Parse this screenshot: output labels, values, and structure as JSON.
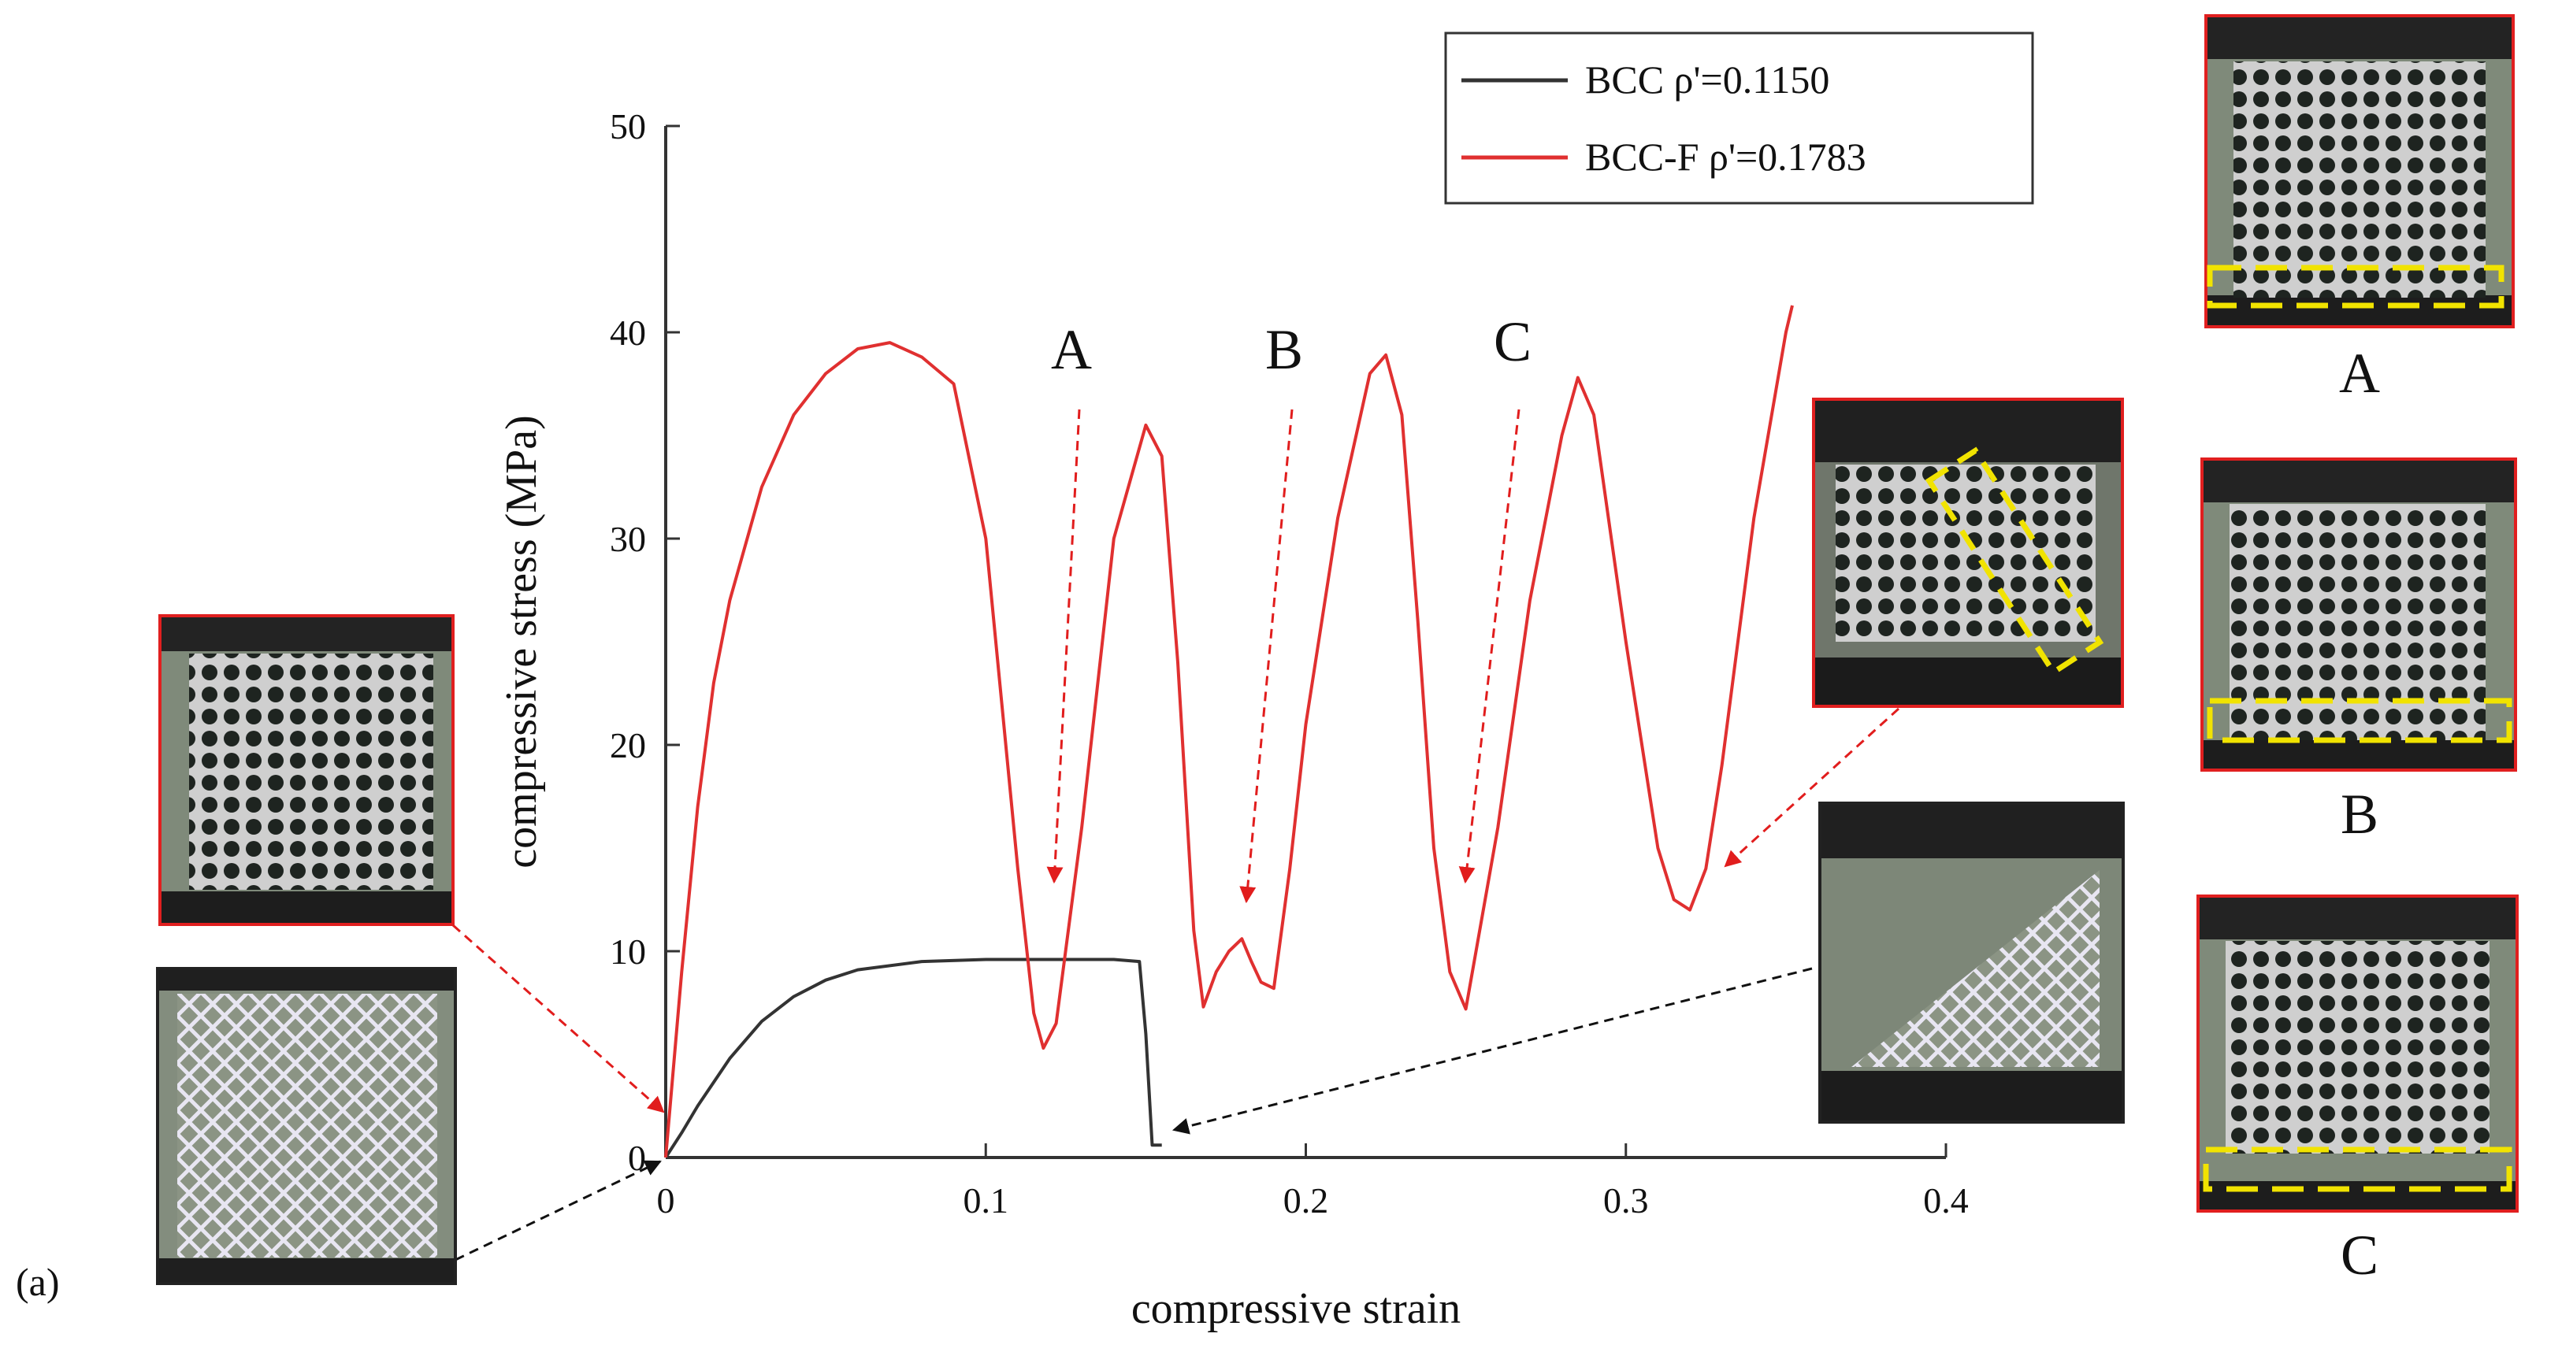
{
  "panel_label": "(a)",
  "chart_data": {
    "type": "line",
    "title": "",
    "xlabel": "compressive strain",
    "ylabel": "compressive stress (MPa)",
    "xlim": [
      0,
      0.4
    ],
    "ylim": [
      0,
      50
    ],
    "xticks": [
      0,
      0.1,
      0.2,
      0.3,
      0.4
    ],
    "xtick_labels": [
      "0",
      "0.1",
      "0.2",
      "0.3",
      "0.4"
    ],
    "yticks": [
      0,
      10,
      20,
      30,
      40,
      50
    ],
    "ytick_labels": [
      "0",
      "10",
      "20",
      "30",
      "40",
      "50"
    ],
    "grid": false,
    "legend_position": "top-right",
    "series": [
      {
        "name": "BCC ρ'=0.1150",
        "color": "#333333",
        "x": [
          0,
          0.005,
          0.01,
          0.02,
          0.03,
          0.04,
          0.05,
          0.06,
          0.08,
          0.1,
          0.12,
          0.14,
          0.148,
          0.15,
          0.152,
          0.155
        ],
        "y": [
          0,
          1.2,
          2.5,
          4.8,
          6.6,
          7.8,
          8.6,
          9.1,
          9.5,
          9.6,
          9.6,
          9.6,
          9.5,
          6.0,
          0.6,
          0.6
        ]
      },
      {
        "name": "BCC-F ρ'=0.1783",
        "color": "#e03030",
        "x": [
          0,
          0.005,
          0.01,
          0.015,
          0.02,
          0.03,
          0.04,
          0.05,
          0.06,
          0.07,
          0.08,
          0.09,
          0.1,
          0.105,
          0.11,
          0.115,
          0.118,
          0.122,
          0.13,
          0.14,
          0.15,
          0.155,
          0.16,
          0.165,
          0.168,
          0.172,
          0.176,
          0.18,
          0.183,
          0.186,
          0.19,
          0.195,
          0.2,
          0.21,
          0.22,
          0.225,
          0.23,
          0.235,
          0.24,
          0.245,
          0.25,
          0.26,
          0.27,
          0.28,
          0.285,
          0.29,
          0.3,
          0.31,
          0.315,
          0.32,
          0.325,
          0.33,
          0.34,
          0.35,
          0.352
        ],
        "y": [
          0,
          9,
          17,
          23,
          27,
          32.5,
          36,
          38,
          39.2,
          39.5,
          38.8,
          37.5,
          30,
          22,
          14,
          7,
          5.3,
          6.5,
          16,
          30,
          35.5,
          34,
          24,
          11,
          7.3,
          9,
          10,
          10.6,
          9.5,
          8.5,
          8.2,
          14,
          21,
          31,
          38,
          38.9,
          36,
          26,
          15,
          9,
          7.2,
          16,
          27,
          35,
          37.8,
          36,
          25,
          15,
          12.5,
          12,
          14,
          19,
          31,
          40,
          41.3
        ]
      }
    ],
    "annotations": [
      {
        "label": "A",
        "x": 0.121,
        "y": 13.8
      },
      {
        "label": "B",
        "x": 0.182,
        "y": 12.5
      },
      {
        "label": "C",
        "x": 0.25,
        "y": 13.8
      }
    ]
  },
  "insets": [
    {
      "id": "bcc-f-initial",
      "caption": ""
    },
    {
      "id": "bcc-initial",
      "caption": ""
    },
    {
      "id": "bcc-f-final",
      "caption": ""
    },
    {
      "id": "bcc-final",
      "caption": ""
    },
    {
      "id": "state-a",
      "caption": "A"
    },
    {
      "id": "state-b",
      "caption": "B"
    },
    {
      "id": "state-c",
      "caption": "C"
    }
  ]
}
